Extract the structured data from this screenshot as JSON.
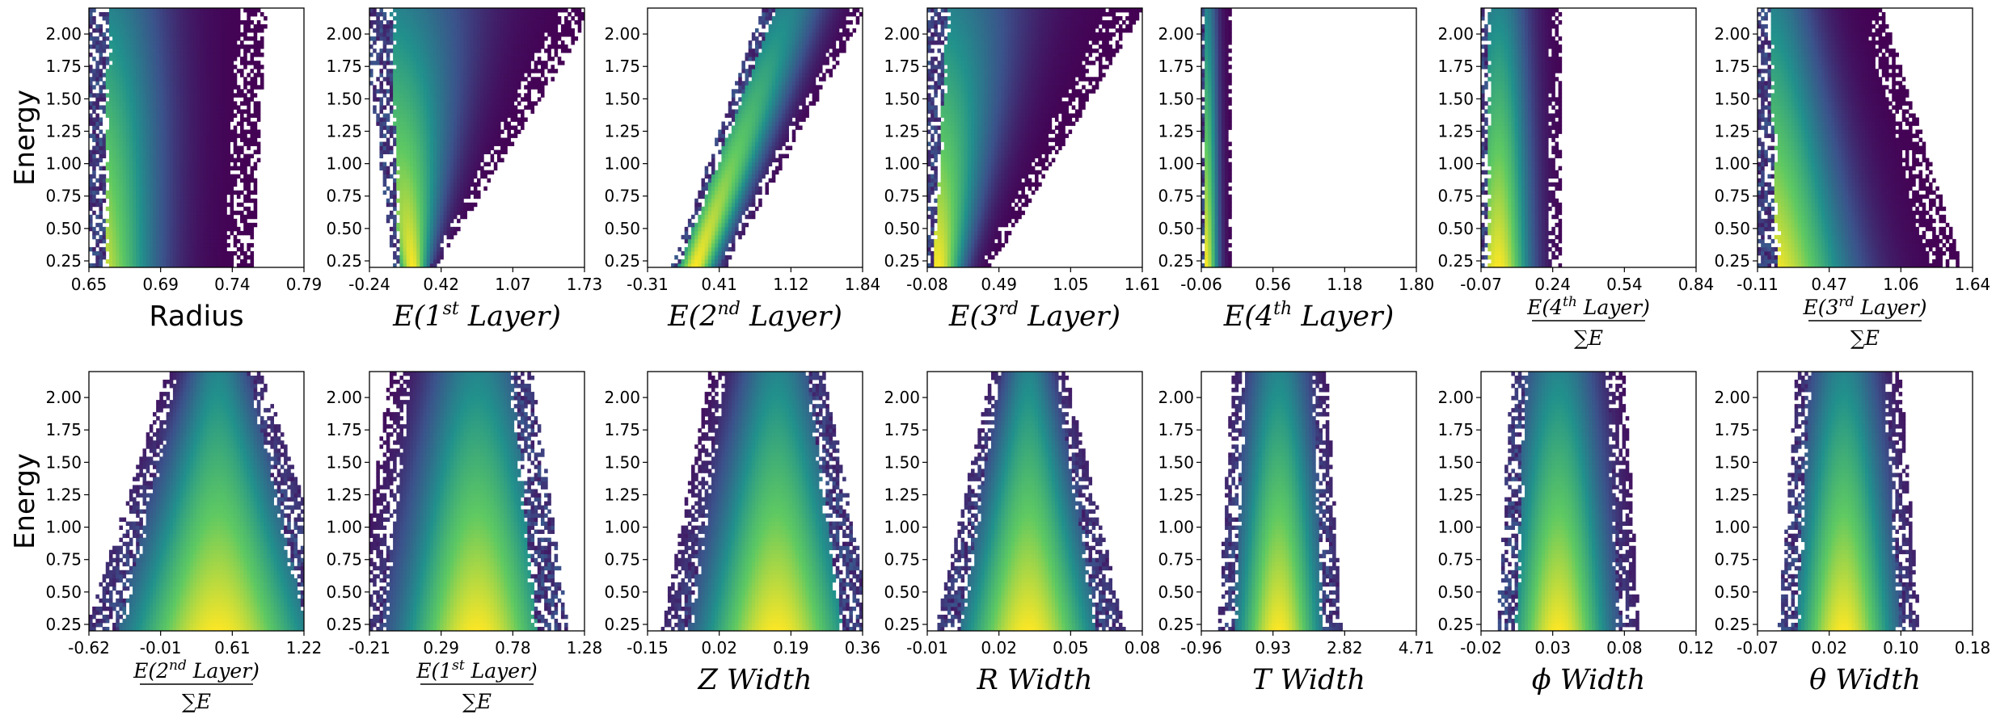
{
  "chart_data": {
    "type": "heatmap",
    "description_note": "2D histograms of energy vs. shower observable",
    "ylabel": "Energy",
    "yticks": [
      "0.25",
      "0.50",
      "0.75",
      "1.00",
      "1.25",
      "1.50",
      "1.75",
      "2.00"
    ],
    "ylim": [
      0.2,
      2.2
    ],
    "colormap": [
      "#440154",
      "#3b528b",
      "#21918c",
      "#5ec962",
      "#fde725"
    ],
    "panels": [
      {
        "id": "radius",
        "row": 0,
        "label": {
          "kind": "plain",
          "text": "Radius"
        },
        "xticks": [
          "0.65",
          "0.69",
          "0.74",
          "0.79"
        ],
        "shape": {
          "kind": "band",
          "center": 0.3,
          "width": 0.42,
          "topShift": 0.06,
          "lowerEdge": 0.0,
          "peakAt": 0.0
        }
      },
      {
        "id": "e-layer1",
        "row": 0,
        "label": {
          "kind": "sup",
          "pre": "E(1",
          "sup": "st",
          "post": " Layer)"
        },
        "xticks": [
          "-0.24",
          "0.42",
          "1.07",
          "1.73"
        ],
        "shape": {
          "kind": "wedge",
          "leftBottom": 0.12,
          "leftTop": 0.0,
          "rightBottom": 0.3,
          "rightTop": 1.0,
          "peak": 0.2
        }
      },
      {
        "id": "e-layer2",
        "row": 0,
        "label": {
          "kind": "sup",
          "pre": "E(2",
          "sup": "nd",
          "post": " Layer)"
        },
        "xticks": [
          "-0.31",
          "0.41",
          "1.12",
          "1.84"
        ],
        "shape": {
          "kind": "wedge",
          "leftBottom": 0.12,
          "leftTop": 0.55,
          "rightBottom": 0.35,
          "rightTop": 1.0,
          "peak": 0.22
        }
      },
      {
        "id": "e-layer3",
        "row": 0,
        "label": {
          "kind": "sup",
          "pre": "E(3",
          "sup": "rd",
          "post": " Layer)"
        },
        "xticks": [
          "-0.08",
          "0.49",
          "1.05",
          "1.61"
        ],
        "shape": {
          "kind": "wedge",
          "leftBottom": 0.0,
          "leftTop": 0.0,
          "rightBottom": 0.28,
          "rightTop": 0.95,
          "peak": 0.05
        }
      },
      {
        "id": "e-layer4",
        "row": 0,
        "label": {
          "kind": "sup",
          "pre": "E(4",
          "sup": "th",
          "post": " Layer)"
        },
        "xticks": [
          "-0.06",
          "0.56",
          "1.18",
          "1.80"
        ],
        "shape": {
          "kind": "band",
          "center": 0.04,
          "width": 0.1,
          "topShift": 0.0,
          "lowerEdge": 0.0,
          "peakAt": 0.02
        }
      },
      {
        "id": "frac-layer4",
        "row": 0,
        "label": {
          "kind": "frac",
          "pre": "E(4",
          "sup": "th",
          "post": " Layer)",
          "den": "∑E"
        },
        "xticks": [
          "-0.07",
          "0.24",
          "0.54",
          "0.84"
        ],
        "shape": {
          "kind": "band",
          "center": 0.12,
          "width": 0.24,
          "topShift": 0.0,
          "lowerEdge": 0.0,
          "peakAt": 0.08
        }
      },
      {
        "id": "frac-layer3",
        "row": 0,
        "label": {
          "kind": "frac",
          "pre": "E(3",
          "sup": "rd",
          "post": " Layer)",
          "den": "∑E"
        },
        "xticks": [
          "-0.11",
          "0.47",
          "1.06",
          "1.64"
        ],
        "shape": {
          "kind": "wedge",
          "leftBottom": 0.0,
          "leftTop": 0.0,
          "rightBottom": 0.9,
          "rightTop": 0.55,
          "peak": 0.05
        }
      },
      {
        "id": "frac-layer2",
        "row": 1,
        "label": {
          "kind": "frac",
          "pre": "E(2",
          "sup": "nd",
          "post": " Layer)",
          "den": "∑E"
        },
        "xticks": [
          "-0.62",
          "-0.01",
          "0.61",
          "1.22"
        ],
        "shape": {
          "kind": "flare",
          "center": 0.58,
          "halfTop": 0.2,
          "halfBottom": 0.55,
          "peakAt": 0.6
        }
      },
      {
        "id": "frac-layer1",
        "row": 1,
        "label": {
          "kind": "frac",
          "pre": "E(1",
          "sup": "st",
          "post": " Layer)",
          "den": "∑E"
        },
        "xticks": [
          "-0.21",
          "0.29",
          "0.78",
          "1.28"
        ],
        "shape": {
          "kind": "flare",
          "center": 0.42,
          "halfTop": 0.3,
          "halfBottom": 0.45,
          "peakAt": 0.5
        }
      },
      {
        "id": "z-width",
        "row": 1,
        "label": {
          "kind": "italic",
          "text": "Z Width"
        },
        "xticks": [
          "-0.15",
          "0.02",
          "0.19",
          "0.36"
        ],
        "shape": {
          "kind": "flare",
          "center": 0.55,
          "halfTop": 0.24,
          "halfBottom": 0.45,
          "peakAt": 0.6
        }
      },
      {
        "id": "r-width",
        "row": 1,
        "label": {
          "kind": "italic",
          "text": "R Width"
        },
        "xticks": [
          "-0.01",
          "0.02",
          "0.05",
          "0.08"
        ],
        "shape": {
          "kind": "flare",
          "center": 0.47,
          "halfTop": 0.16,
          "halfBottom": 0.4,
          "peakAt": 0.47
        }
      },
      {
        "id": "t-width",
        "row": 1,
        "label": {
          "kind": "italic",
          "text": "T Width"
        },
        "xticks": [
          "-0.96",
          "0.93",
          "2.82",
          "4.71"
        ],
        "shape": {
          "kind": "flare",
          "center": 0.36,
          "halfTop": 0.2,
          "halfBottom": 0.26,
          "peakAt": 0.36
        }
      },
      {
        "id": "phi-width",
        "row": 1,
        "label": {
          "kind": "italic",
          "text": "ϕ Width"
        },
        "xticks": [
          "-0.02",
          "0.03",
          "0.08",
          "0.12"
        ],
        "shape": {
          "kind": "flare",
          "center": 0.4,
          "halfTop": 0.24,
          "halfBottom": 0.3,
          "peakAt": 0.36
        }
      },
      {
        "id": "theta-width",
        "row": 1,
        "label": {
          "kind": "italic",
          "text": "θ Width"
        },
        "xticks": [
          "-0.07",
          "0.02",
          "0.10",
          "0.18"
        ],
        "shape": {
          "kind": "flare",
          "center": 0.42,
          "halfTop": 0.22,
          "halfBottom": 0.3,
          "peakAt": 0.4
        }
      }
    ]
  }
}
